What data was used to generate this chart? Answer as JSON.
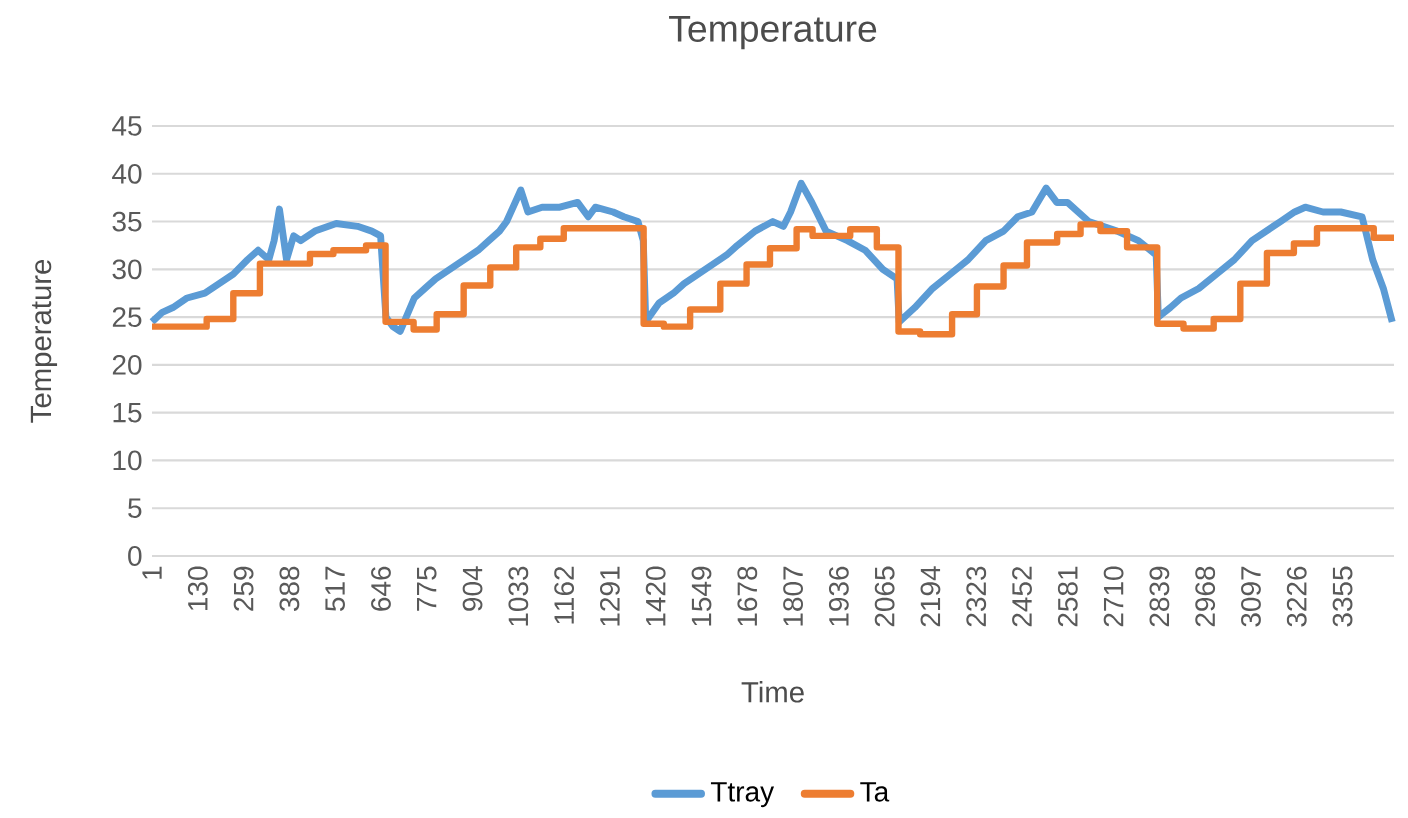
{
  "chart_data": {
    "type": "line",
    "title": "Temperature",
    "xlabel": "Time",
    "ylabel": "Temperature",
    "xlim": [
      1,
      3500
    ],
    "xticks": [
      1,
      130,
      259,
      388,
      517,
      646,
      775,
      904,
      1033,
      1162,
      1291,
      1420,
      1549,
      1678,
      1807,
      1936,
      2065,
      2194,
      2323,
      2452,
      2581,
      2710,
      2839,
      2968,
      3097,
      3226,
      3355
    ],
    "ylim": [
      0,
      45
    ],
    "yticks": [
      0,
      5,
      10,
      15,
      20,
      25,
      30,
      35,
      40,
      45
    ],
    "grid": "y",
    "legend": "bottom",
    "series": [
      {
        "name": "Ttray",
        "color": "#5b9bd5",
        "type": "line",
        "x": [
          1,
          30,
          60,
          100,
          150,
          190,
          230,
          270,
          300,
          330,
          345,
          360,
          380,
          400,
          420,
          460,
          520,
          580,
          620,
          645,
          660,
          680,
          700,
          740,
          770,
          800,
          840,
          880,
          920,
          950,
          980,
          1000,
          1040,
          1060,
          1100,
          1150,
          1200,
          1230,
          1250,
          1300,
          1330,
          1370,
          1385,
          1392,
          1430,
          1470,
          1500,
          1540,
          1580,
          1620,
          1650,
          1700,
          1750,
          1780,
          1800,
          1830,
          1860,
          1900,
          1960,
          2010,
          2060,
          2100,
          2106,
          2150,
          2200,
          2250,
          2300,
          2350,
          2400,
          2440,
          2480,
          2520,
          2550,
          2580,
          2640,
          2680,
          2720,
          2780,
          2830,
          2836,
          2870,
          2900,
          2950,
          3000,
          3050,
          3100,
          3140,
          3180,
          3220,
          3250,
          3300,
          3350,
          3410,
          3440,
          3470,
          3495
        ],
        "values": [
          24.5,
          25.5,
          26,
          27,
          27.5,
          28.5,
          29.5,
          31,
          32,
          31,
          33,
          36.3,
          31,
          33.5,
          33,
          34,
          34.8,
          34.5,
          34,
          33.5,
          25,
          24,
          23.5,
          27,
          28,
          29,
          30,
          31,
          32,
          33,
          34,
          35,
          38.3,
          36,
          36.5,
          36.5,
          37,
          35.5,
          36.5,
          36,
          35.5,
          35,
          33,
          24.5,
          26.5,
          27.5,
          28.5,
          29.5,
          30.5,
          31.5,
          32.5,
          34,
          35,
          34.5,
          36,
          39,
          37,
          34,
          33,
          32,
          30,
          29,
          24.5,
          26,
          28,
          29.5,
          31,
          33,
          34,
          35.5,
          36,
          38.5,
          37,
          37,
          35,
          34.5,
          34,
          33,
          31.5,
          25,
          26,
          27,
          28,
          29.5,
          31,
          33,
          34,
          35,
          36,
          36.5,
          36,
          36,
          35.5,
          31,
          28,
          24.5
        ]
      },
      {
        "name": "Ta",
        "color": "#ed7d31",
        "type": "step",
        "x": [
          1,
          155,
          230,
          305,
          446,
          512,
          604,
          659,
          738,
          803,
          879,
          954,
          1027,
          1095,
          1161,
          1386,
          1443,
          1517,
          1602,
          1676,
          1742,
          1817,
          1862,
          1968,
          2043,
          2104,
          2165,
          2255,
          2325,
          2400,
          2466,
          2551,
          2617,
          2673,
          2748,
          2833,
          2907,
          2992,
          3067,
          3142,
          3218,
          3283,
          3443,
          3500
        ],
        "values": [
          24.0,
          24.8,
          27.5,
          30.6,
          31.6,
          32.0,
          32.5,
          24.5,
          23.7,
          25.3,
          28.3,
          30.2,
          32.3,
          33.2,
          34.3,
          24.3,
          24.0,
          25.8,
          28.5,
          30.5,
          32.2,
          34.2,
          33.5,
          34.2,
          32.3,
          23.5,
          23.2,
          25.3,
          28.2,
          30.4,
          32.8,
          33.7,
          34.7,
          34.0,
          32.3,
          24.3,
          23.8,
          24.8,
          28.5,
          31.7,
          32.7,
          34.3,
          33.3,
          33.3
        ]
      }
    ]
  }
}
